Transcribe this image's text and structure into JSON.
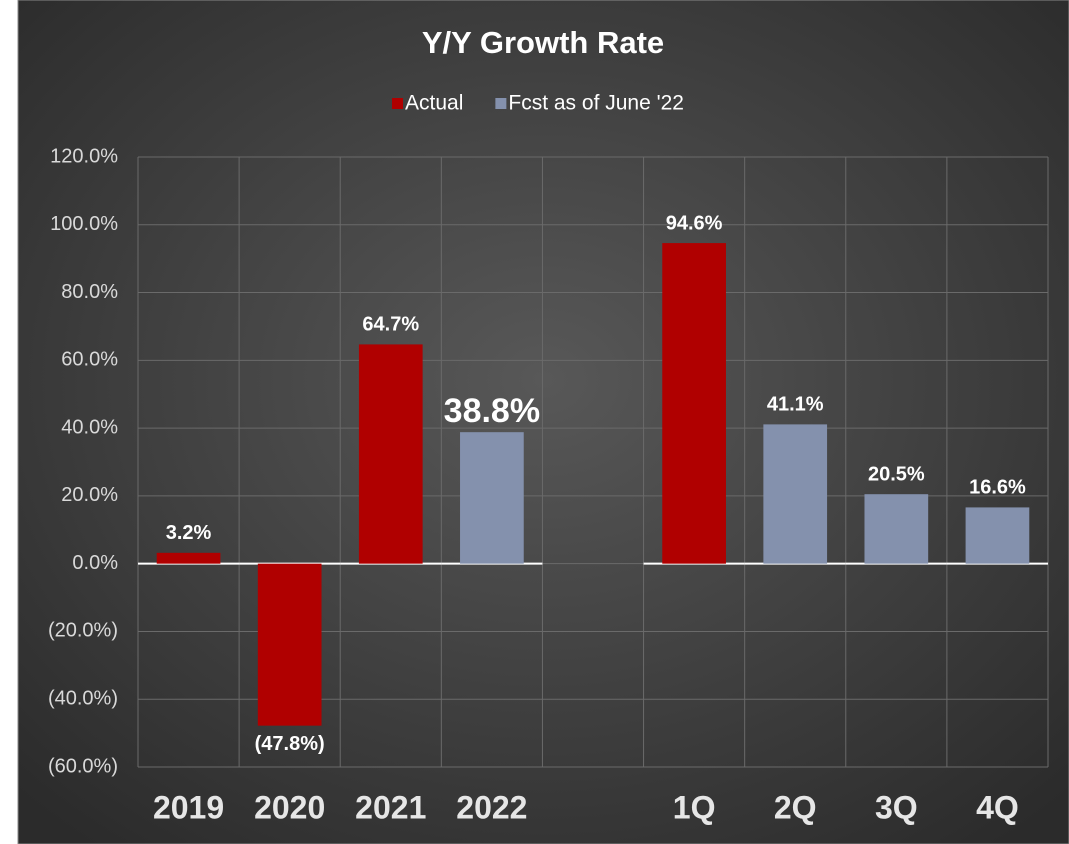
{
  "chart_data": {
    "type": "bar",
    "title": "Y/Y Growth Rate",
    "categories": [
      "2019",
      "2020",
      "2021",
      "2022",
      null,
      "1Q",
      "2Q",
      "3Q",
      "4Q"
    ],
    "series": [
      {
        "name": "Actual",
        "color": "#b00000",
        "values": [
          3.2,
          -47.8,
          64.7,
          null,
          null,
          94.6,
          null,
          null,
          null
        ],
        "value_labels": [
          "3.2%",
          "(47.8%)",
          "64.7%",
          null,
          null,
          "94.6%",
          null,
          null,
          null
        ]
      },
      {
        "name": "Fcst as of June '22",
        "color": "#8491ad",
        "values": [
          null,
          null,
          null,
          38.8,
          null,
          null,
          41.1,
          20.5,
          16.6
        ],
        "value_labels": [
          null,
          null,
          null,
          "38.8%",
          null,
          null,
          "41.1%",
          "20.5%",
          "16.6%"
        ]
      }
    ],
    "ylim": [
      -60,
      120
    ],
    "yticks": [
      {
        "value": -60,
        "label": "(60.0%)"
      },
      {
        "value": -40,
        "label": "(40.0%)"
      },
      {
        "value": -20,
        "label": "(20.0%)"
      },
      {
        "value": 0,
        "label": "0.0%"
      },
      {
        "value": 20,
        "label": "20.0%"
      },
      {
        "value": 40,
        "label": "40.0%"
      },
      {
        "value": 60,
        "label": "60.0%"
      },
      {
        "value": 80,
        "label": "80.0%"
      },
      {
        "value": 100,
        "label": "100.0%"
      },
      {
        "value": 120,
        "label": "120.0%"
      }
    ],
    "grid": true,
    "legend": "top"
  }
}
